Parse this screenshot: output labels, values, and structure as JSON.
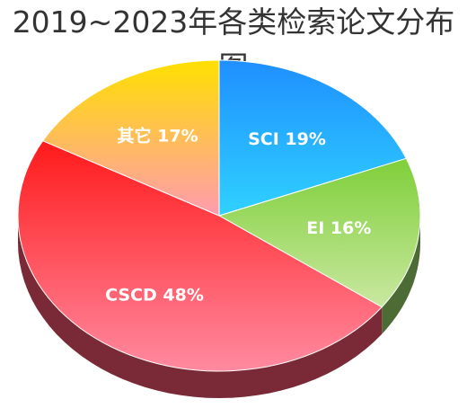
{
  "chart_data": {
    "type": "pie",
    "title": "2019~2023年各类检索论文分布图",
    "slices": [
      {
        "label": "SCI 19%",
        "name": "SCI",
        "value": 19,
        "color_top": "#1f8fff",
        "color_bottom": "#2fd1ff",
        "side": "#1a5fa8"
      },
      {
        "label": "EI 16%",
        "name": "EI",
        "value": 16,
        "color_top": "#7fcf3a",
        "color_bottom": "#c9e8a0",
        "side": "#4d6b35"
      },
      {
        "label": "CSCD 48%",
        "name": "CSCD",
        "value": 48,
        "color_top": "#ff1a1a",
        "color_bottom": "#ff8aa0",
        "side": "#7a2a36"
      },
      {
        "label": "其它 17%",
        "name": "其它",
        "value": 17,
        "color_top": "#ffe000",
        "color_bottom": "#ff9bb0",
        "side": "#8a6a30"
      }
    ],
    "legend": "none",
    "start_angle_deg": 0,
    "direction": "clockwise"
  }
}
